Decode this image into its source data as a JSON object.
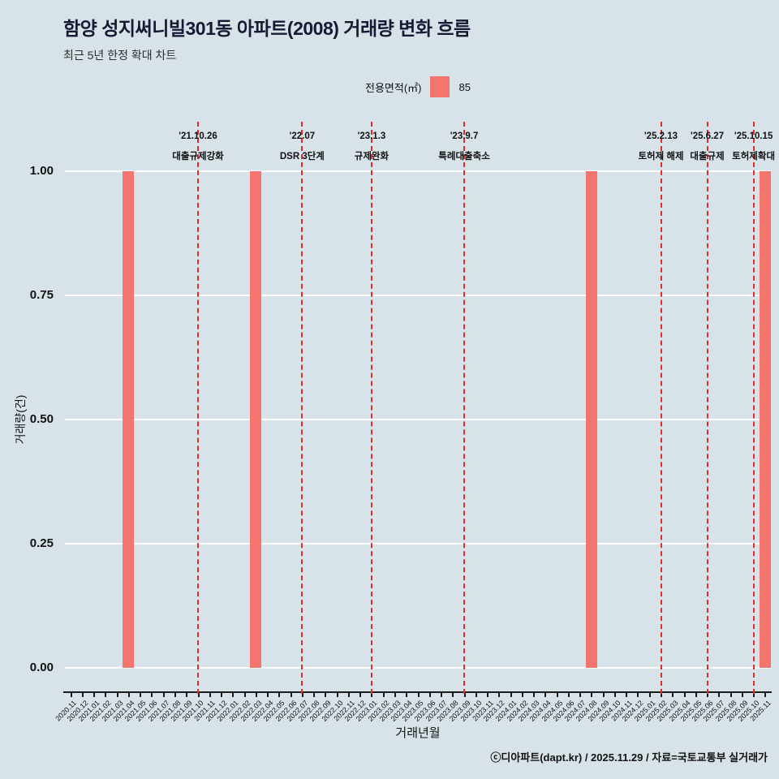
{
  "header": {
    "title": "함양 성지써니빌301동 아파트(2008) 거래량 변화 흐름",
    "subtitle": "최근 5년 한정 확대 차트"
  },
  "legend": {
    "label": "전용면적(㎡)",
    "value": "85",
    "swatch_color": "#f4756e"
  },
  "chart_data": {
    "type": "bar",
    "title": "함양 성지써니빌301동 아파트(2008) 거래량 변화 흐름",
    "xlabel": "거래년월",
    "ylabel": "거래량(건)",
    "ylim": [
      0,
      1.0
    ],
    "yticks": [
      0,
      0.25,
      0.5,
      0.75,
      1.0
    ],
    "grid": "horizontal-white",
    "bar_color": "#f4756e",
    "line_color": "#e12c2c",
    "categories": [
      "2020.11",
      "2020.12",
      "2021.01",
      "2021.02",
      "2021.03",
      "2021.04",
      "2021.05",
      "2021.06",
      "2021.07",
      "2021.08",
      "2021.09",
      "2021.10",
      "2021.11",
      "2021.12",
      "2022.01",
      "2022.02",
      "2022.03",
      "2022.04",
      "2022.05",
      "2022.06",
      "2022.07",
      "2022.08",
      "2022.09",
      "2022.10",
      "2022.11",
      "2022.12",
      "2023.01",
      "2023.02",
      "2023.03",
      "2023.04",
      "2023.05",
      "2023.06",
      "2023.07",
      "2023.08",
      "2023.09",
      "2023.10",
      "2023.11",
      "2023.12",
      "2024.01",
      "2024.02",
      "2024.03",
      "2024.04",
      "2024.05",
      "2024.06",
      "2024.07",
      "2024.08",
      "2024.09",
      "2024.10",
      "2024.11",
      "2024.12",
      "2025.01",
      "2025.02",
      "2025.03",
      "2025.04",
      "2025.05",
      "2025.06",
      "2025.07",
      "2025.08",
      "2025.09",
      "2025.10",
      "2025.11"
    ],
    "values": [
      0,
      0,
      0,
      0,
      0,
      1,
      0,
      0,
      0,
      0,
      0,
      0,
      0,
      0,
      0,
      0,
      1,
      0,
      0,
      0,
      0,
      0,
      0,
      0,
      0,
      0,
      0,
      0,
      0,
      0,
      0,
      0,
      0,
      0,
      0,
      0,
      0,
      0,
      0,
      0,
      0,
      0,
      0,
      0,
      0,
      1,
      0,
      0,
      0,
      0,
      0,
      0,
      0,
      0,
      0,
      0,
      0,
      0,
      0,
      0,
      1
    ],
    "annotations": [
      {
        "date": "'21.10.26",
        "label": "대출규제강화",
        "month": "2021.10"
      },
      {
        "date": "'22.07",
        "label": "DSR 3단계",
        "month": "2022.07"
      },
      {
        "date": "'23.1.3",
        "label": "규제완화",
        "month": "2023.01"
      },
      {
        "date": "'23.9.7",
        "label": "특례대출축소",
        "month": "2023.09"
      },
      {
        "date": "'25.2.13",
        "label": "토허제 해제",
        "month": "2025.02"
      },
      {
        "date": "'25.6.27",
        "label": "대출규제",
        "month": "2025.06"
      },
      {
        "date": "'25.10.15",
        "label": "토허제확대",
        "month": "2025.10"
      }
    ]
  },
  "footer": {
    "text": "ⓒ디아파트(dapt.kr) / 2025.11.29 / 자료=국토교통부 실거래가"
  }
}
